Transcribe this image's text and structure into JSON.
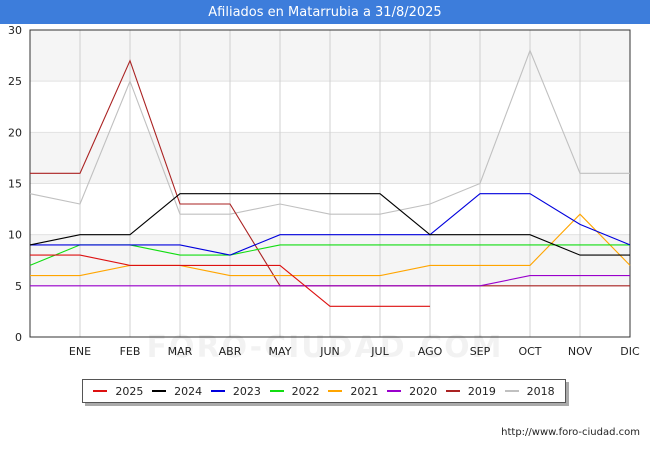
{
  "header": {
    "title": "Afiliados en Matarrubia a 31/8/2025"
  },
  "footer": {
    "url": "http://www.foro-ciudad.com"
  },
  "watermark": "FORO-CIUDAD.COM",
  "chart_data": {
    "type": "line",
    "title": "Afiliados en Matarrubia a 31/8/2025",
    "xlabel": "",
    "ylabel": "",
    "categories": [
      "",
      "ENE",
      "FEB",
      "MAR",
      "ABR",
      "MAY",
      "JUN",
      "JUL",
      "AGO",
      "SEP",
      "OCT",
      "NOV",
      "DIC"
    ],
    "yticks": [
      0,
      5,
      10,
      15,
      20,
      25,
      30
    ],
    "ylim": [
      0,
      30
    ],
    "grid": "horizontal and vertical",
    "legend_position": "bottom",
    "series": [
      {
        "name": "2025",
        "color": "#dd1111",
        "values": [
          8,
          8,
          7,
          7,
          7,
          7,
          3,
          3,
          3,
          null,
          null,
          null,
          null
        ]
      },
      {
        "name": "2024",
        "color": "#000000",
        "values": [
          9,
          10,
          10,
          14,
          14,
          14,
          14,
          14,
          10,
          10,
          10,
          8,
          8
        ]
      },
      {
        "name": "2023",
        "color": "#0000dd",
        "values": [
          9,
          9,
          9,
          9,
          8,
          10,
          10,
          10,
          10,
          14,
          14,
          11,
          9
        ]
      },
      {
        "name": "2022",
        "color": "#11dd11",
        "values": [
          7,
          9,
          9,
          8,
          8,
          9,
          9,
          9,
          9,
          9,
          9,
          9,
          9
        ]
      },
      {
        "name": "2021",
        "color": "#ffa500",
        "values": [
          6,
          6,
          7,
          7,
          6,
          6,
          6,
          6,
          7,
          7,
          7,
          12,
          7
        ]
      },
      {
        "name": "2020",
        "color": "#9900cc",
        "values": [
          5,
          5,
          5,
          5,
          5,
          5,
          5,
          5,
          5,
          5,
          6,
          6,
          6
        ]
      },
      {
        "name": "2019",
        "color": "#aa2222",
        "values": [
          16,
          16,
          27,
          13,
          13,
          5,
          5,
          5,
          5,
          5,
          5,
          5,
          5
        ]
      },
      {
        "name": "2018",
        "color": "#c0c0c0",
        "values": [
          14,
          13,
          25,
          12,
          12,
          13,
          12,
          12,
          13,
          15,
          28,
          16,
          16
        ]
      }
    ]
  }
}
